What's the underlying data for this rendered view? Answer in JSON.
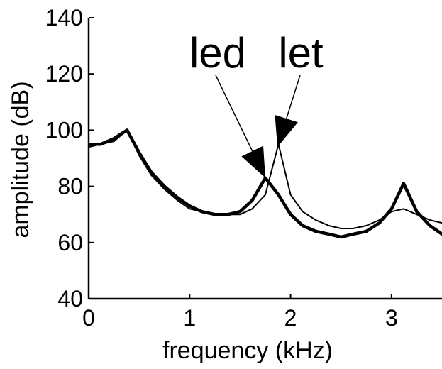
{
  "chart_data": {
    "type": "line",
    "title": "",
    "xlabel": "frequency (kHz)",
    "ylabel": "amplitude (dB)",
    "xlim": [
      0,
      3.5
    ],
    "ylim": [
      40,
      140
    ],
    "xticks": [
      0,
      1,
      2,
      3
    ],
    "yticks": [
      40,
      60,
      80,
      100,
      120,
      140
    ],
    "grid": false,
    "legend": "none",
    "series": [
      {
        "name": "led",
        "color": "#000000",
        "line_style": "thick",
        "x": [
          0,
          0.12,
          0.25,
          0.38,
          0.5,
          0.62,
          0.75,
          0.88,
          1.0,
          1.12,
          1.25,
          1.38,
          1.5,
          1.62,
          1.75,
          1.88,
          2.0,
          2.12,
          2.25,
          2.38,
          2.5,
          2.62,
          2.75,
          2.88,
          3.0,
          3.12,
          3.25,
          3.38,
          3.5
        ],
        "y": [
          95,
          95,
          97,
          100,
          92,
          85,
          80,
          76,
          73,
          71,
          70,
          70,
          71,
          75,
          83,
          77,
          70,
          66,
          64,
          63,
          62,
          63,
          64,
          67,
          72,
          81,
          71,
          66,
          63
        ]
      },
      {
        "name": "let",
        "color": "#000000",
        "line_style": "thin",
        "x": [
          0,
          0.12,
          0.25,
          0.38,
          0.5,
          0.62,
          0.75,
          0.88,
          1.0,
          1.12,
          1.25,
          1.38,
          1.5,
          1.62,
          1.75,
          1.88,
          2.0,
          2.12,
          2.25,
          2.38,
          2.5,
          2.62,
          2.75,
          2.88,
          3.0,
          3.12,
          3.25,
          3.38,
          3.5
        ],
        "y": [
          94,
          95,
          96,
          100,
          91,
          84,
          79,
          75,
          72,
          71,
          70,
          70,
          70,
          72,
          77,
          95,
          77,
          71,
          68,
          66,
          65,
          65,
          66,
          68,
          71,
          72,
          70,
          68,
          67
        ]
      }
    ],
    "annotations": [
      {
        "text": "led",
        "points_to_series": "led",
        "target": [
          1.75,
          83
        ]
      },
      {
        "text": "let",
        "points_to_series": "let",
        "target": [
          1.87,
          94
        ]
      }
    ]
  }
}
